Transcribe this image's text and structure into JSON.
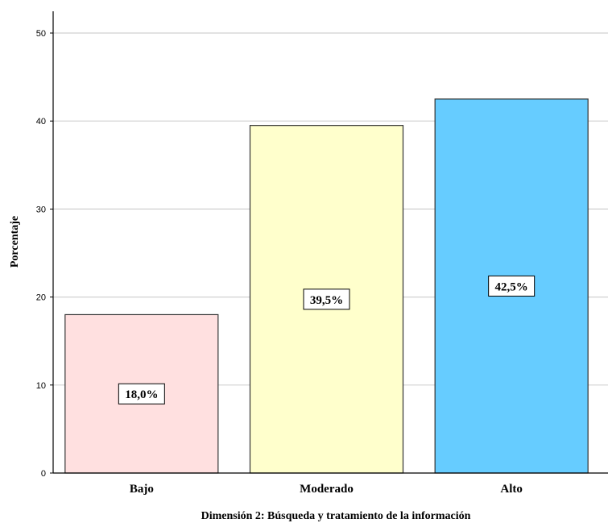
{
  "chart_data": {
    "type": "bar",
    "categories": [
      "Bajo",
      "Moderado",
      "Alto"
    ],
    "values": [
      18.0,
      39.5,
      42.5
    ],
    "data_labels": [
      "18,0%",
      "39,5%",
      "42,5%"
    ],
    "colors": [
      "#ffe0e0",
      "#ffffcc",
      "#66ccff"
    ],
    "xlabel": "Dimensión 2: Búsqueda y tratamiento de la información",
    "ylabel": "Porcentaje",
    "ylim": [
      0,
      50
    ],
    "yticks": [
      0,
      10,
      20,
      30,
      40,
      50
    ],
    "grid": true
  }
}
